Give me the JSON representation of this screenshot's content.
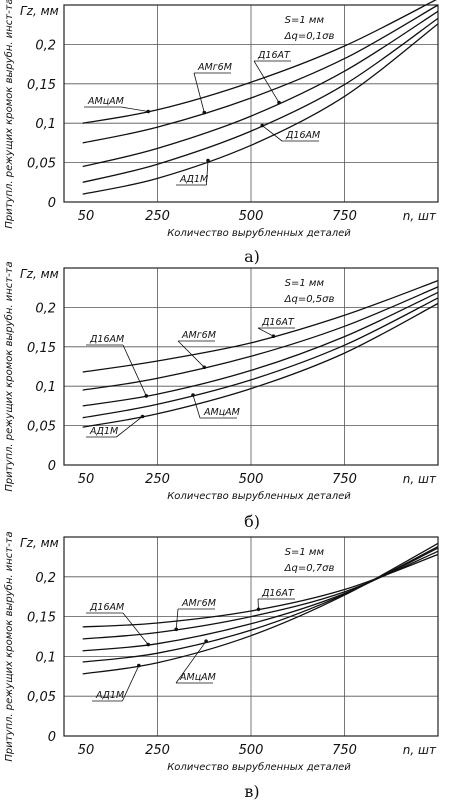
{
  "chart_data": [
    {
      "type": "line",
      "panel_label": "а)",
      "ylabel": "Притупл. режущих кромок вырубн. инст-та",
      "y_unit": "Гz, мм",
      "xlabel": "Количество вырубленных деталей",
      "x_unit": "n, шт",
      "xticks": [
        "50",
        "250",
        "500",
        "750"
      ],
      "yticks": [
        "0",
        "0,05",
        "0,1",
        "0,15",
        "0,2"
      ],
      "xlim": [
        0,
        1000
      ],
      "ylim": [
        0,
        0.25
      ],
      "grid": true,
      "annotations": [
        "S=1 мм",
        "Δq=0,1σв"
      ],
      "series": [
        {
          "name": "АМцАМ",
          "x": [
            50,
            250,
            500,
            750,
            1000
          ],
          "values": [
            0.1,
            0.117,
            0.152,
            0.198,
            0.258
          ]
        },
        {
          "name": "АМг6М",
          "x": [
            50,
            250,
            500,
            750,
            1000
          ],
          "values": [
            0.075,
            0.095,
            0.132,
            0.182,
            0.25
          ]
        },
        {
          "name": "Д16АТ",
          "x": [
            50,
            250,
            500,
            750,
            1000
          ],
          "values": [
            0.045,
            0.068,
            0.109,
            0.166,
            0.242
          ]
        },
        {
          "name": "Д16АМ",
          "x": [
            50,
            250,
            500,
            750,
            1000
          ],
          "values": [
            0.025,
            0.048,
            0.09,
            0.149,
            0.233
          ]
        },
        {
          "name": "АД1М",
          "x": [
            50,
            250,
            500,
            750,
            1000
          ],
          "values": [
            0.01,
            0.03,
            0.072,
            0.134,
            0.226
          ]
        }
      ]
    },
    {
      "type": "line",
      "panel_label": "б)",
      "ylabel": "Притупл. режущих кромок вырубн. инст-та",
      "y_unit": "Гz, мм",
      "xlabel": "Количество вырубленных деталей",
      "x_unit": "n, шт",
      "xticks": [
        "50",
        "250",
        "500",
        "750"
      ],
      "yticks": [
        "0",
        "0,05",
        "0,1",
        "0,15",
        "0,2"
      ],
      "xlim": [
        0,
        1000
      ],
      "ylim": [
        0,
        0.25
      ],
      "grid": true,
      "annotations": [
        "S=1 мм",
        "Δq=0,5σв"
      ],
      "series": [
        {
          "name": "Д16АТ",
          "x": [
            50,
            250,
            500,
            750,
            1000
          ],
          "values": [
            0.118,
            0.132,
            0.155,
            0.19,
            0.234
          ]
        },
        {
          "name": "АМг6М",
          "x": [
            50,
            250,
            500,
            750,
            1000
          ],
          "values": [
            0.095,
            0.11,
            0.138,
            0.176,
            0.226
          ]
        },
        {
          "name": "Д16АМ",
          "x": [
            50,
            250,
            500,
            750,
            1000
          ],
          "values": [
            0.075,
            0.09,
            0.12,
            0.163,
            0.219
          ]
        },
        {
          "name": "АМцАМ",
          "x": [
            50,
            250,
            500,
            750,
            1000
          ],
          "values": [
            0.06,
            0.077,
            0.108,
            0.152,
            0.212
          ]
        },
        {
          "name": "АД1М",
          "x": [
            50,
            250,
            500,
            750,
            1000
          ],
          "values": [
            0.048,
            0.065,
            0.097,
            0.142,
            0.205
          ]
        }
      ]
    },
    {
      "type": "line",
      "panel_label": "в)",
      "ylabel": "Притупл. режущих кромок вырубн. инст-та",
      "y_unit": "Гz, мм",
      "xlabel": "Количество вырубленных деталей",
      "x_unit": "n, шт",
      "xticks": [
        "50",
        "250",
        "500",
        "750"
      ],
      "yticks": [
        "0",
        "0,05",
        "0,1",
        "0,15",
        "0,2"
      ],
      "xlim": [
        0,
        1000
      ],
      "ylim": [
        0,
        0.25
      ],
      "grid": true,
      "annotations": [
        "S=1 мм",
        "Δq=0,7σв"
      ],
      "series": [
        {
          "name": "Д16АТ",
          "x": [
            50,
            250,
            500,
            750,
            1000
          ],
          "values": [
            0.137,
            0.142,
            0.157,
            0.184,
            0.228
          ]
        },
        {
          "name": "АМг6М",
          "x": [
            50,
            250,
            500,
            750,
            1000
          ],
          "values": [
            0.122,
            0.13,
            0.15,
            0.181,
            0.232
          ]
        },
        {
          "name": "Д16АМ",
          "x": [
            50,
            250,
            500,
            750,
            1000
          ],
          "values": [
            0.107,
            0.116,
            0.141,
            0.179,
            0.236
          ]
        },
        {
          "name": "АМцАМ",
          "x": [
            50,
            250,
            500,
            750,
            1000
          ],
          "values": [
            0.093,
            0.104,
            0.133,
            0.178,
            0.238
          ]
        },
        {
          "name": "АД1М",
          "x": [
            50,
            250,
            500,
            750,
            1000
          ],
          "values": [
            0.078,
            0.092,
            0.126,
            0.177,
            0.242
          ]
        }
      ]
    }
  ]
}
